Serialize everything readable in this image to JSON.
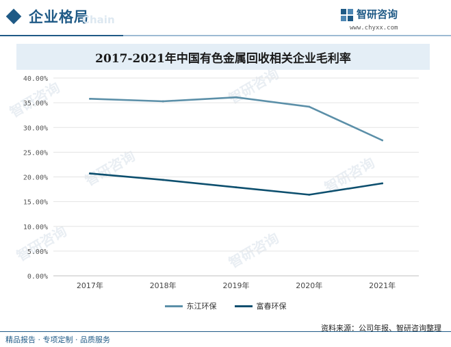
{
  "header": {
    "section_title": "企业格局",
    "title_ghost": "Chain",
    "brand_name": "智研咨询",
    "brand_url": "www.chyxx.com"
  },
  "chart_data": {
    "type": "line",
    "title": "2017-2021年中国有色金属回收相关企业毛利率",
    "categories": [
      "2017年",
      "2018年",
      "2019年",
      "2020年",
      "2021年"
    ],
    "series": [
      {
        "name": "东江环保",
        "color": "#5b8fa8",
        "values": [
          35.8,
          35.3,
          36.1,
          34.2,
          27.4
        ]
      },
      {
        "name": "富春环保",
        "color": "#0d4f6e",
        "values": [
          20.7,
          19.4,
          17.9,
          16.4,
          18.7
        ]
      }
    ],
    "ylim": [
      0,
      40
    ],
    "yticks": [
      "0.00%",
      "5.00%",
      "10.00%",
      "15.00%",
      "20.00%",
      "25.00%",
      "30.00%",
      "35.00%",
      "40.00%"
    ],
    "grid": true,
    "legend_position": "bottom"
  },
  "source": "资料来源：公司年报、智研咨询整理",
  "footer": "精品报告 · 专项定制 · 品质服务",
  "watermark_text": "智研咨询"
}
